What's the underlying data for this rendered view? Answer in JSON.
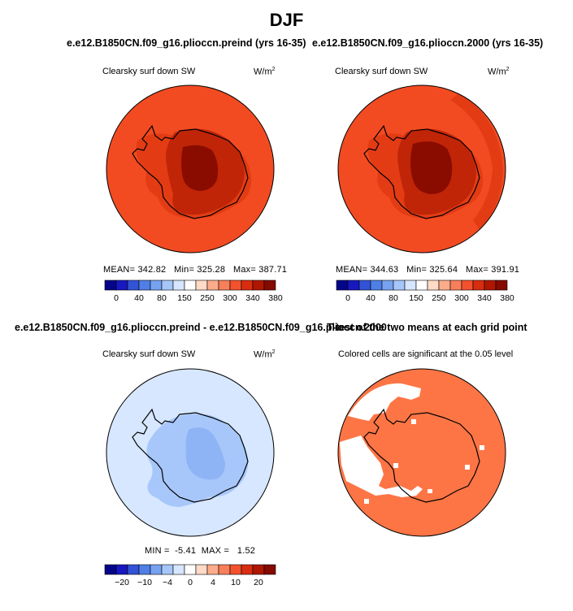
{
  "chart_data": [
    {
      "type": "heatmap",
      "projection": "south-polar-stereographic",
      "title": "e.e12.B1850CN.f09_g16.plioccn.preind (yrs 16-35)",
      "variable": "Clearsky surf down SW",
      "units": "W/m",
      "units_sup": "2",
      "stats": {
        "mean_label": "MEAN=",
        "mean": "342.82",
        "min_label": "Min=",
        "min": "325.28",
        "max_label": "Max=",
        "max": "387.71"
      },
      "colorbar": {
        "ticks": [
          "0",
          "40",
          "80",
          "150",
          "250",
          "300",
          "340",
          "380"
        ]
      }
    },
    {
      "type": "heatmap",
      "projection": "south-polar-stereographic",
      "title": "e.e12.B1850CN.f09_g16.plioccn.2000 (yrs 16-35)",
      "variable": "Clearsky surf down SW",
      "units": "W/m",
      "units_sup": "2",
      "stats": {
        "mean_label": "MEAN=",
        "mean": "344.63",
        "min_label": "Min=",
        "min": "325.64",
        "max_label": "Max=",
        "max": "391.91"
      },
      "colorbar": {
        "ticks": [
          "0",
          "40",
          "80",
          "150",
          "250",
          "300",
          "340",
          "380"
        ]
      }
    },
    {
      "type": "heatmap",
      "projection": "south-polar-stereographic",
      "title": "e.e12.B1850CN.f09_g16.plioccn.preind - e.e12.B1850CN.f09_g16.plioccn.2000",
      "variable": "Clearsky surf down SW",
      "units": "W/m",
      "units_sup": "2",
      "stats": {
        "min_label": "MIN =",
        "min": "-5.41",
        "max_label": "MAX =",
        "max": "1.52"
      },
      "colorbar": {
        "ticks": [
          "−20",
          "−10",
          "−4",
          "0",
          "4",
          "10",
          "20"
        ]
      }
    },
    {
      "type": "heatmap",
      "projection": "south-polar-stereographic",
      "title": "T-test of the two means at each grid point",
      "subtitle": "Colored cells are significant at the 0.05 level"
    }
  ],
  "page": {
    "title": "DJF"
  },
  "colors": {
    "abs_scale": [
      "#05058a",
      "#1818c0",
      "#3253d6",
      "#4f7fe6",
      "#77a2f0",
      "#a6c6fa",
      "#d6e6ff",
      "#ffffff",
      "#ffdac6",
      "#fcac8a",
      "#f77f5a",
      "#f2522e",
      "#d82d10",
      "#b01700",
      "#850a00"
    ],
    "diff_scale": [
      "#05058a",
      "#1818c0",
      "#3253d6",
      "#4f7fe6",
      "#77a2f0",
      "#a6c6fa",
      "#d6e6ff",
      "#ffffff",
      "#ffdac6",
      "#fcac8a",
      "#f77f5a",
      "#f2522e",
      "#d82d10",
      "#b01700",
      "#850a00"
    ],
    "ttest_fill": "#fe7545"
  }
}
